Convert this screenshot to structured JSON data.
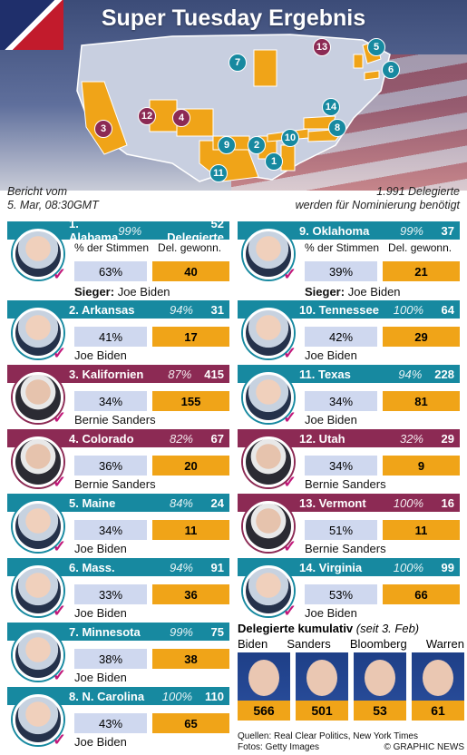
{
  "title": "Super Tuesday Ergebnis",
  "report": {
    "line1": "Bericht vom",
    "line2": "5. Mar, 08:30GMT"
  },
  "needed": {
    "line1": "1.991 Delegierte",
    "line2": "werden für Nominierung benötigt"
  },
  "col_headers": {
    "votes": "% der Stimmen",
    "dels": "Del. gewonn."
  },
  "winner_prefix": "Sieger:",
  "colors": {
    "teal": "#1789a0",
    "purple": "#8c2a54",
    "orange": "#f0a418",
    "lightblue": "#cfd8ef"
  },
  "map_badges": [
    "1",
    "2",
    "3",
    "4",
    "5",
    "6",
    "7",
    "8",
    "9",
    "10",
    "11",
    "12",
    "13",
    "14"
  ],
  "states_left": [
    {
      "name": "1. Alabama",
      "pct": "99%",
      "del": "52 Delegierte",
      "votes": "63%",
      "won": "40",
      "winner": "Joe Biden",
      "color": "t"
    },
    {
      "name": "2. Arkansas",
      "pct": "94%",
      "del": "31",
      "votes": "41%",
      "won": "17",
      "winner": "Joe Biden",
      "color": "t"
    },
    {
      "name": "3. Kalifornien",
      "pct": "87%",
      "del": "415",
      "votes": "34%",
      "won": "155",
      "winner": "Bernie Sanders",
      "color": "p"
    },
    {
      "name": "4. Colorado",
      "pct": "82%",
      "del": "67",
      "votes": "36%",
      "won": "20",
      "winner": "Bernie Sanders",
      "color": "p"
    },
    {
      "name": "5. Maine",
      "pct": "84%",
      "del": "24",
      "votes": "34%",
      "won": "11",
      "winner": "Joe Biden",
      "color": "t"
    },
    {
      "name": "6. Mass.",
      "pct": "94%",
      "del": "91",
      "votes": "33%",
      "won": "36",
      "winner": "Joe Biden",
      "color": "t"
    },
    {
      "name": "7. Minnesota",
      "pct": "99%",
      "del": "75",
      "votes": "38%",
      "won": "38",
      "winner": "Joe Biden",
      "color": "t"
    },
    {
      "name": "8. N. Carolina",
      "pct": "100%",
      "del": "110",
      "votes": "43%",
      "won": "65",
      "winner": "Joe Biden",
      "color": "t"
    }
  ],
  "states_right": [
    {
      "name": "9. Oklahoma",
      "pct": "99%",
      "del": "37",
      "votes": "39%",
      "won": "21",
      "winner": "Joe Biden",
      "color": "t"
    },
    {
      "name": "10. Tennessee",
      "pct": "100%",
      "del": "64",
      "votes": "42%",
      "won": "29",
      "winner": "Joe Biden",
      "color": "t"
    },
    {
      "name": "11. Texas",
      "pct": "94%",
      "del": "228",
      "votes": "34%",
      "won": "81",
      "winner": "Joe Biden",
      "color": "t"
    },
    {
      "name": "12. Utah",
      "pct": "32%",
      "del": "29",
      "votes": "34%",
      "won": "9",
      "winner": "Bernie Sanders",
      "color": "p"
    },
    {
      "name": "13. Vermont",
      "pct": "100%",
      "del": "16",
      "votes": "51%",
      "won": "11",
      "winner": "Bernie Sanders",
      "color": "p"
    },
    {
      "name": "14. Virginia",
      "pct": "100%",
      "del": "99",
      "votes": "53%",
      "won": "66",
      "winner": "Joe Biden",
      "color": "t"
    }
  ],
  "cumulative": {
    "title": "Delegierte kumulativ",
    "since": "(seit 3. Feb)",
    "candidates": [
      {
        "name": "Biden",
        "value": "566"
      },
      {
        "name": "Sanders",
        "value": "501"
      },
      {
        "name": "Bloomberg",
        "value": "53"
      },
      {
        "name": "Warren",
        "value": "61"
      }
    ]
  },
  "footer": {
    "sources": "Quellen: Real Clear Politics, New York Times",
    "photos": "Fotos: Getty Images",
    "copyright": "© GRAPHIC NEWS"
  }
}
